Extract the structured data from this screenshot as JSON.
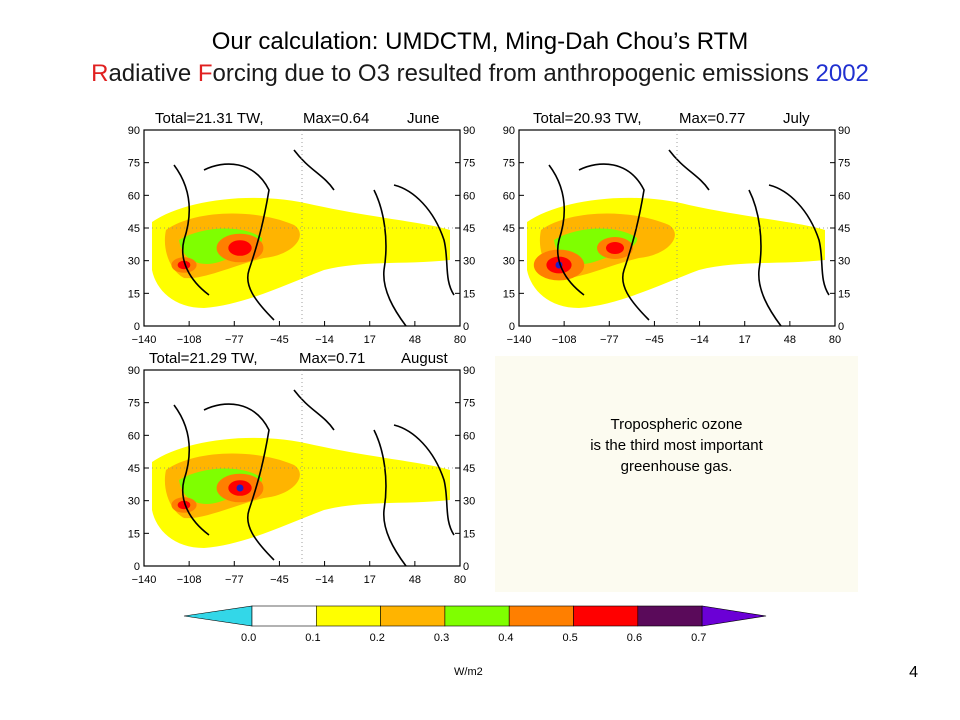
{
  "title_line1": "Our calculation: UMDCTM, Ming-Dah Chou’s RTM",
  "title_line2_parts": {
    "r1": "R",
    "t1": "adiative ",
    "r2": "F",
    "t2": "orcing due to O3 resulted from anthropogenic emissions ",
    "year": "2002"
  },
  "panels": [
    {
      "month": "June",
      "total": "Total=21.31  TW,",
      "max": "Max=0.64"
    },
    {
      "month": "July",
      "total": "Total=20.93  TW,",
      "max": "Max=0.77"
    },
    {
      "month": "August",
      "total": "Total=21.29  TW,",
      "max": "Max=0.71"
    }
  ],
  "map": {
    "lat_ticks": [
      "90",
      "75",
      "60",
      "45",
      "30",
      "15",
      "0"
    ],
    "lon_ticks": [
      "−140",
      "−108",
      "−77",
      "−45",
      "−14",
      "17",
      "48",
      "80"
    ]
  },
  "note": {
    "line1": "Tropospheric ozone",
    "line2": "is the third most important",
    "line3": "greenhouse gas."
  },
  "colorbar": {
    "labels": [
      "0.0",
      "0.1",
      "0.2",
      "0.3",
      "0.4",
      "0.5",
      "0.6",
      "0.7"
    ],
    "unit": "W/m2",
    "colors": [
      "#33d7e8",
      "#ffffff",
      "#ffff00",
      "#ffb400",
      "#7fff00",
      "#ff7f00",
      "#ff0000",
      "#5a0a5a",
      "#6b00d6"
    ]
  },
  "page_number": "4"
}
